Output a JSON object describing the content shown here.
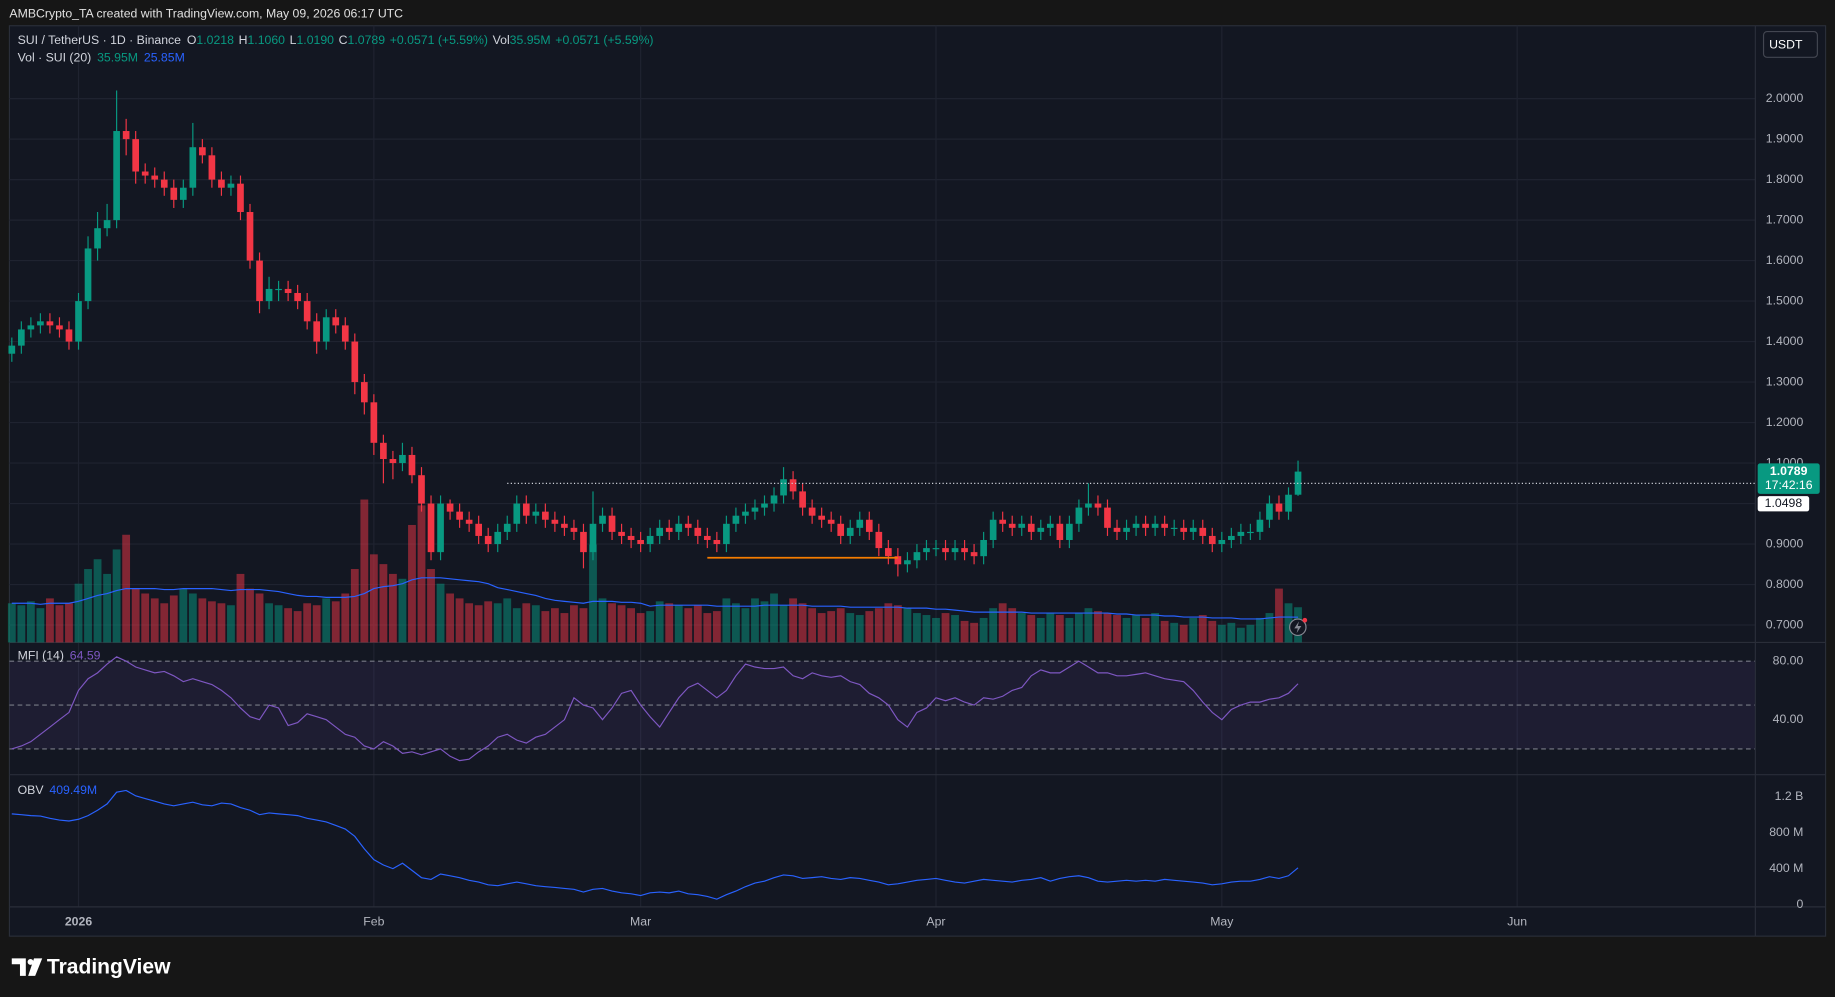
{
  "header": {
    "attribution": "AMBCrypto_TA created with TradingView.com, May 09, 2026 06:17 UTC",
    "symbol": "SUI / TetherUS · 1D · Binance",
    "ohlc": [
      {
        "label": "O",
        "value": "1.0218"
      },
      {
        "label": "H",
        "value": "1.1060"
      },
      {
        "label": "L",
        "value": "1.0190"
      },
      {
        "label": "C",
        "value": "1.0789"
      }
    ],
    "change": "+0.0571 (+5.59%)",
    "vol_label": "Vol",
    "vol_value": "35.95M",
    "vol_change": "+0.0571 (+5.59%)",
    "currency": "USDT"
  },
  "logo": "TradingView",
  "chart_data": [
    {
      "type": "candlestick",
      "up_color": "#089981",
      "down_color": "#f23645",
      "grid": true,
      "xlim": [
        -0.25,
        183
      ],
      "xticks": [
        {
          "value": 7,
          "label": "2026"
        },
        {
          "value": 38,
          "label": "Feb"
        },
        {
          "value": 66,
          "label": "Mar"
        },
        {
          "value": 97,
          "label": "Apr"
        },
        {
          "value": 127,
          "label": "May"
        },
        {
          "value": 158,
          "label": "Jun"
        }
      ],
      "ylim": [
        0.657,
        2.18
      ],
      "yticks": [
        {
          "value": 0.7,
          "label": "0.7000"
        },
        {
          "value": 0.8,
          "label": "0.8000"
        },
        {
          "value": 0.9,
          "label": "0.9000"
        },
        {
          "value": 1.0,
          "label": "1.0000"
        },
        {
          "value": 1.1,
          "label": "1.1000"
        },
        {
          "value": 1.2,
          "label": "1.2000"
        },
        {
          "value": 1.3,
          "label": "1.3000"
        },
        {
          "value": 1.4,
          "label": "1.4000"
        },
        {
          "value": 1.5,
          "label": "1.5000"
        },
        {
          "value": 1.6,
          "label": "1.6000"
        },
        {
          "value": 1.7,
          "label": "1.7000"
        },
        {
          "value": 1.8,
          "label": "1.8000"
        },
        {
          "value": 1.9,
          "label": "1.9000"
        },
        {
          "value": 2.0,
          "label": "2.0000"
        }
      ],
      "open": [
        1.37,
        1.39,
        1.43,
        1.44,
        1.45,
        1.44,
        1.43,
        1.4,
        1.5,
        1.63,
        1.68,
        1.7,
        1.92,
        1.9,
        1.82,
        1.81,
        1.8,
        1.78,
        1.75,
        1.78,
        1.88,
        1.86,
        1.8,
        1.78,
        1.79,
        1.72,
        1.6,
        1.5,
        1.53,
        1.53,
        1.52,
        1.5,
        1.45,
        1.4,
        1.46,
        1.44,
        1.4,
        1.3,
        1.25,
        1.15,
        1.11,
        1.1,
        1.12,
        1.07,
        1.0,
        0.88,
        1.0,
        0.98,
        0.96,
        0.95,
        0.92,
        0.9,
        0.93,
        0.95,
        1.0,
        0.97,
        0.98,
        0.96,
        0.95,
        0.94,
        0.93,
        0.88,
        0.95,
        0.97,
        0.93,
        0.92,
        0.91,
        0.9,
        0.92,
        0.94,
        0.93,
        0.95,
        0.94,
        0.92,
        0.91,
        0.9,
        0.95,
        0.97,
        0.98,
        0.99,
        1.0,
        1.02,
        1.06,
        1.03,
        0.99,
        0.97,
        0.96,
        0.95,
        0.92,
        0.94,
        0.96,
        0.93,
        0.89,
        0.87,
        0.85,
        0.86,
        0.88,
        0.89,
        0.89,
        0.88,
        0.89,
        0.88,
        0.87,
        0.91,
        0.96,
        0.95,
        0.94,
        0.95,
        0.93,
        0.94,
        0.95,
        0.91,
        0.95,
        0.99,
        1.0,
        0.99,
        0.94,
        0.93,
        0.94,
        0.95,
        0.94,
        0.95,
        0.94,
        0.94,
        0.93,
        0.94,
        0.92,
        0.9,
        0.91,
        0.92,
        0.93,
        0.93,
        0.96,
        1.0,
        0.98,
        1.0218
      ],
      "high": [
        1.41,
        1.45,
        1.46,
        1.47,
        1.47,
        1.46,
        1.45,
        1.52,
        1.66,
        1.72,
        1.74,
        2.02,
        1.95,
        1.92,
        1.84,
        1.83,
        1.82,
        1.8,
        1.8,
        1.94,
        1.9,
        1.88,
        1.82,
        1.81,
        1.81,
        1.74,
        1.62,
        1.56,
        1.55,
        1.55,
        1.54,
        1.52,
        1.47,
        1.48,
        1.48,
        1.46,
        1.42,
        1.32,
        1.27,
        1.17,
        1.13,
        1.15,
        1.14,
        1.09,
        1.02,
        1.02,
        1.01,
        1.0,
        0.98,
        0.97,
        0.94,
        0.95,
        0.97,
        1.02,
        1.02,
        1.0,
        1.0,
        0.98,
        0.97,
        0.96,
        0.95,
        1.03,
        0.99,
        0.99,
        0.95,
        0.94,
        0.93,
        0.94,
        0.96,
        0.96,
        0.97,
        0.97,
        0.96,
        0.94,
        0.93,
        0.97,
        0.99,
        1.0,
        1.01,
        1.02,
        1.04,
        1.09,
        1.08,
        1.05,
        1.01,
        0.99,
        0.98,
        0.97,
        0.96,
        0.98,
        0.98,
        0.95,
        0.91,
        0.89,
        0.88,
        0.9,
        0.91,
        0.91,
        0.91,
        0.91,
        0.91,
        0.9,
        0.93,
        0.98,
        0.98,
        0.97,
        0.97,
        0.97,
        0.96,
        0.97,
        0.97,
        0.97,
        1.01,
        1.05,
        1.02,
        1.01,
        0.96,
        0.96,
        0.97,
        0.97,
        0.97,
        0.97,
        0.96,
        0.96,
        0.96,
        0.96,
        0.94,
        0.93,
        0.94,
        0.95,
        0.95,
        0.98,
        1.02,
        1.02,
        1.04,
        1.106
      ],
      "low": [
        1.35,
        1.37,
        1.41,
        1.42,
        1.42,
        1.41,
        1.38,
        1.38,
        1.48,
        1.6,
        1.66,
        1.68,
        1.86,
        1.79,
        1.79,
        1.78,
        1.76,
        1.73,
        1.73,
        1.76,
        1.84,
        1.78,
        1.76,
        1.76,
        1.7,
        1.58,
        1.47,
        1.48,
        1.5,
        1.5,
        1.48,
        1.43,
        1.37,
        1.38,
        1.42,
        1.38,
        1.27,
        1.22,
        1.12,
        1.05,
        1.06,
        1.08,
        1.05,
        0.98,
        0.86,
        0.86,
        0.96,
        0.94,
        0.93,
        0.9,
        0.88,
        0.88,
        0.91,
        0.93,
        0.95,
        0.95,
        0.94,
        0.93,
        0.92,
        0.91,
        0.84,
        0.86,
        0.93,
        0.91,
        0.9,
        0.89,
        0.88,
        0.88,
        0.9,
        0.91,
        0.91,
        0.92,
        0.9,
        0.89,
        0.88,
        0.88,
        0.93,
        0.95,
        0.96,
        0.97,
        0.98,
        1.0,
        1.01,
        0.97,
        0.95,
        0.94,
        0.93,
        0.9,
        0.9,
        0.92,
        0.91,
        0.87,
        0.85,
        0.82,
        0.83,
        0.84,
        0.86,
        0.87,
        0.86,
        0.86,
        0.86,
        0.85,
        0.85,
        0.89,
        0.93,
        0.92,
        0.92,
        0.91,
        0.91,
        0.92,
        0.89,
        0.89,
        0.93,
        0.97,
        0.97,
        0.92,
        0.91,
        0.91,
        0.92,
        0.92,
        0.92,
        0.92,
        0.92,
        0.91,
        0.91,
        0.9,
        0.88,
        0.88,
        0.89,
        0.9,
        0.91,
        0.91,
        0.94,
        0.96,
        0.96,
        1.019
      ],
      "close": [
        1.39,
        1.43,
        1.44,
        1.45,
        1.44,
        1.43,
        1.4,
        1.5,
        1.63,
        1.68,
        1.7,
        1.92,
        1.9,
        1.82,
        1.81,
        1.8,
        1.78,
        1.75,
        1.78,
        1.88,
        1.86,
        1.8,
        1.78,
        1.79,
        1.72,
        1.6,
        1.5,
        1.53,
        1.53,
        1.52,
        1.5,
        1.45,
        1.4,
        1.46,
        1.44,
        1.4,
        1.3,
        1.25,
        1.15,
        1.11,
        1.1,
        1.12,
        1.07,
        1.0,
        0.88,
        1.0,
        0.98,
        0.96,
        0.95,
        0.92,
        0.9,
        0.93,
        0.95,
        1.0,
        0.97,
        0.98,
        0.96,
        0.95,
        0.94,
        0.93,
        0.88,
        0.95,
        0.97,
        0.93,
        0.92,
        0.91,
        0.9,
        0.92,
        0.94,
        0.93,
        0.95,
        0.94,
        0.92,
        0.91,
        0.9,
        0.95,
        0.97,
        0.98,
        0.99,
        1.0,
        1.02,
        1.06,
        1.03,
        0.99,
        0.97,
        0.96,
        0.95,
        0.92,
        0.94,
        0.96,
        0.93,
        0.89,
        0.87,
        0.85,
        0.86,
        0.88,
        0.89,
        0.89,
        0.88,
        0.89,
        0.88,
        0.87,
        0.91,
        0.96,
        0.95,
        0.94,
        0.95,
        0.93,
        0.94,
        0.95,
        0.91,
        0.95,
        0.99,
        1.0,
        0.99,
        0.94,
        0.93,
        0.94,
        0.95,
        0.94,
        0.95,
        0.94,
        0.94,
        0.93,
        0.94,
        0.92,
        0.9,
        0.91,
        0.92,
        0.93,
        0.93,
        0.96,
        1.0,
        0.98,
        1.0218,
        1.0789
      ],
      "last_price": {
        "value": 1.0789,
        "label": "1.0789",
        "countdown": "17:42:16"
      },
      "level": {
        "value": 1.0498,
        "label": "1.0498",
        "from": 52,
        "color": "#d1d4dc"
      },
      "drawings": [
        {
          "value": 0.866,
          "from": 73,
          "to": 93,
          "color": "#f57c00"
        }
      ]
    },
    {
      "type": "bar",
      "title": "Vol · SUI (20)",
      "ylim": [
        0,
        630
      ],
      "series": [
        {
          "value_label": "35.95M",
          "up_color": "rgba(8,153,129,0.5)",
          "down_color": "rgba(242,54,69,0.5)",
          "values": [
            40,
            38,
            42,
            35,
            45,
            38,
            40,
            60,
            75,
            85,
            70,
            95,
            110,
            55,
            50,
            45,
            40,
            48,
            55,
            50,
            45,
            42,
            40,
            38,
            70,
            55,
            50,
            40,
            38,
            35,
            32,
            40,
            38,
            45,
            42,
            50,
            75,
            146,
            90,
            80,
            70,
            65,
            120,
            140,
            75,
            60,
            50,
            45,
            40,
            38,
            42,
            40,
            45,
            35,
            40,
            38,
            32,
            35,
            30,
            38,
            35,
            100,
            45,
            40,
            38,
            35,
            30,
            32,
            42,
            40,
            38,
            35,
            38,
            30,
            32,
            45,
            40,
            35,
            45,
            42,
            50,
            38,
            45,
            40,
            35,
            30,
            32,
            35,
            30,
            28,
            32,
            35,
            40,
            38,
            35,
            30,
            28,
            25,
            30,
            28,
            22,
            20,
            25,
            35,
            40,
            35,
            30,
            28,
            25,
            30,
            28,
            25,
            30,
            35,
            32,
            30,
            28,
            25,
            28,
            25,
            30,
            22,
            20,
            18,
            25,
            28,
            22,
            18,
            20,
            15,
            18,
            25,
            30,
            55,
            40,
            35.95
          ]
        },
        {
          "type": "line",
          "value_label": "25.85M",
          "color": "#2962ff",
          "values": [
            40,
            40,
            40,
            39,
            40,
            40,
            40,
            42,
            45,
            48,
            50,
            53,
            55,
            55,
            55,
            55,
            54,
            54,
            55,
            55,
            55,
            55,
            54,
            53,
            54,
            54,
            54,
            53,
            52,
            50,
            48,
            47,
            47,
            46,
            46,
            46,
            47,
            50,
            55,
            57,
            58,
            60,
            64,
            66,
            66,
            66,
            65,
            64,
            63,
            62,
            60,
            56,
            54,
            52,
            50,
            48,
            45,
            43,
            42,
            41,
            40,
            42,
            42,
            42,
            41,
            41,
            40,
            37,
            38,
            38,
            38,
            38,
            38,
            38,
            37,
            37,
            37,
            37,
            37,
            38,
            38,
            38,
            38,
            38,
            37,
            37,
            37,
            37,
            36,
            36,
            36,
            36,
            36,
            36,
            35,
            35,
            35,
            34,
            34,
            33,
            32,
            31,
            31,
            31,
            31,
            31,
            31,
            30,
            30,
            30,
            30,
            30,
            30,
            30,
            30,
            30,
            29,
            29,
            28,
            28,
            28,
            27,
            27,
            26,
            26,
            26,
            25,
            25,
            25,
            24,
            24,
            24,
            25,
            26,
            26,
            25.85
          ]
        }
      ]
    },
    {
      "type": "line",
      "title": "MFI (14)",
      "value_label": "64.59",
      "color": "#7e57c2",
      "ylim": [
        2.4,
        92.8
      ],
      "yticks": [
        {
          "value": 80,
          "label": "80.00"
        },
        {
          "value": 40,
          "label": "40.00"
        }
      ],
      "bands": [
        80,
        50,
        20
      ],
      "band_fill": "rgba(126,87,194,0.1)",
      "values": [
        20,
        22,
        25,
        30,
        35,
        40,
        45,
        60,
        68,
        72,
        78,
        83,
        80,
        76,
        74,
        72,
        73,
        70,
        66,
        68,
        66,
        64,
        60,
        55,
        48,
        42,
        40,
        50,
        48,
        36,
        38,
        44,
        42,
        40,
        35,
        30,
        28,
        22,
        20,
        25,
        22,
        17,
        18,
        16,
        18,
        20,
        15,
        12,
        13,
        18,
        22,
        28,
        30,
        26,
        24,
        28,
        30,
        35,
        40,
        55,
        50,
        48,
        40,
        48,
        58,
        60,
        50,
        42,
        35,
        45,
        55,
        62,
        65,
        60,
        55,
        60,
        70,
        78,
        76,
        75,
        75,
        76,
        70,
        68,
        72,
        70,
        69,
        70,
        66,
        64,
        58,
        55,
        50,
        40,
        35,
        45,
        48,
        55,
        53,
        55,
        52,
        50,
        55,
        54,
        56,
        60,
        62,
        70,
        74,
        72,
        72,
        76,
        80,
        76,
        72,
        72,
        70,
        70,
        71,
        72,
        70,
        68,
        67,
        66,
        60,
        52,
        45,
        40,
        47,
        50,
        52,
        52,
        54,
        55,
        58,
        64.59
      ]
    },
    {
      "type": "line",
      "title": "OBV",
      "value_label": "409.49M",
      "color": "#2962ff",
      "ylim": [
        -26,
        1446
      ],
      "yticks": [
        {
          "value": 1200,
          "label": "1.2 B"
        },
        {
          "value": 800,
          "label": "800 M"
        },
        {
          "value": 400,
          "label": "400 M"
        },
        0
      ],
      "values": [
        1010,
        1000,
        990,
        985,
        960,
        940,
        930,
        950,
        990,
        1050,
        1120,
        1250,
        1270,
        1210,
        1180,
        1150,
        1120,
        1100,
        1120,
        1140,
        1110,
        1100,
        1130,
        1120,
        1080,
        1050,
        1000,
        1020,
        1010,
        1000,
        990,
        960,
        940,
        920,
        880,
        840,
        760,
        620,
        500,
        440,
        400,
        460,
        380,
        300,
        280,
        340,
        320,
        300,
        270,
        250,
        220,
        210,
        230,
        250,
        230,
        210,
        200,
        190,
        180,
        170,
        140,
        170,
        180,
        150,
        130,
        120,
        100,
        130,
        140,
        130,
        150,
        120,
        110,
        90,
        60,
        110,
        150,
        200,
        240,
        260,
        300,
        330,
        320,
        290,
        300,
        310,
        290,
        280,
        300,
        290,
        270,
        250,
        220,
        230,
        250,
        270,
        280,
        290,
        270,
        250,
        240,
        260,
        280,
        270,
        260,
        250,
        270,
        280,
        300,
        260,
        290,
        310,
        320,
        300,
        260,
        250,
        260,
        270,
        260,
        270,
        260,
        280,
        270,
        260,
        250,
        240,
        220,
        230,
        250,
        260,
        260,
        280,
        310,
        290,
        320,
        409.49
      ]
    }
  ]
}
